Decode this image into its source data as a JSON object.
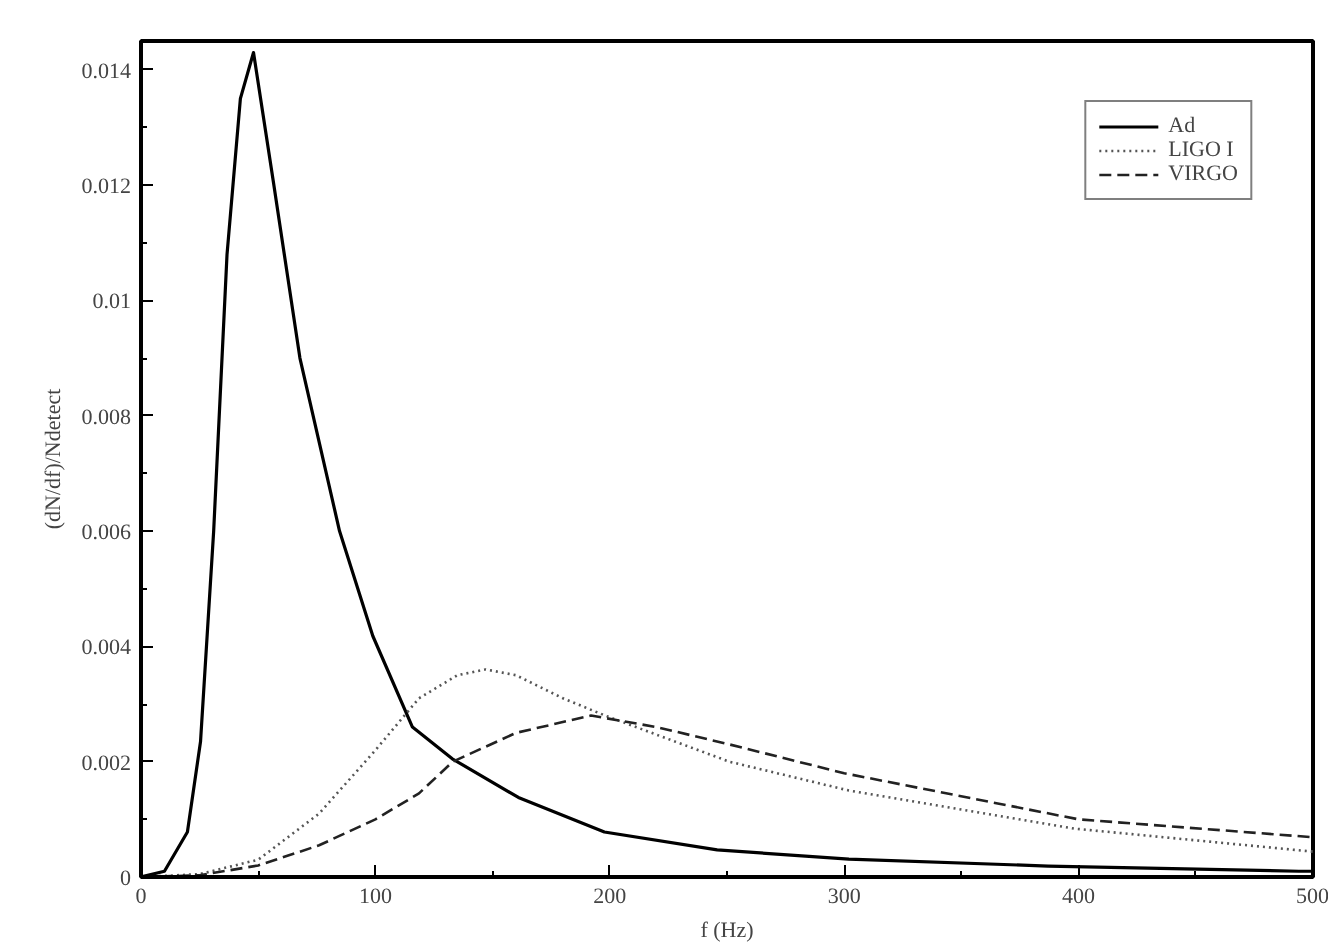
{
  "chart_data": {
    "type": "line",
    "xlabel": "f (Hz)",
    "ylabel": "(dN/df)/Ndetect",
    "xlim": [
      0,
      500
    ],
    "ylim": [
      0,
      0.0145
    ],
    "xticks": [
      0,
      100,
      200,
      300,
      400,
      500
    ],
    "yticks": [
      0,
      0.002,
      0.004,
      0.006,
      0.008,
      {
        "value": 0.01,
        "label": "0.01"
      },
      0.012,
      0.014
    ],
    "grid": false,
    "legend": "top right",
    "marker": "none",
    "series": [
      {
        "name": "Ad",
        "color": "#000000",
        "line_style": "solid",
        "x": [
          0,
          10,
          19.8,
          25.4,
          31,
          36.7,
          42.4,
          48,
          56.5,
          67.8,
          84.7,
          98.9,
          115.8,
          132.8,
          161,
          197.7,
          245.8,
          302,
          387,
          494,
          500
        ],
        "values": [
          0,
          0.0001,
          0.00078,
          0.00235,
          0.006,
          0.0108,
          0.0135,
          0.0143,
          0.01205,
          0.009,
          0.006,
          0.00418,
          0.0026,
          0.00205,
          0.00138,
          0.00078,
          0.00047,
          0.00031,
          0.00019,
          0.0001,
          0.0001
        ]
      },
      {
        "name": "LIGO I",
        "color": "#555555",
        "line_style": "dotted",
        "x": [
          0,
          25,
          50,
          76,
          100,
          118.6,
          135,
          147,
          160,
          180,
          198,
          251,
          302,
          398,
          500
        ],
        "values": [
          0,
          5e-05,
          0.0003,
          0.0011,
          0.0022,
          0.0031,
          0.0035,
          0.0036,
          0.0035,
          0.0031,
          0.0028,
          0.002,
          0.0015,
          0.00084,
          0.00044
        ]
      },
      {
        "name": "VIRGO",
        "color": "#222222",
        "line_style": "dashed",
        "x": [
          0,
          25,
          50,
          76,
          100,
          118.6,
          133,
          160,
          192,
          220,
          251,
          300,
          400,
          500
        ],
        "values": [
          0,
          3e-05,
          0.0002,
          0.00055,
          0.001,
          0.00145,
          0.002,
          0.0025,
          0.0028,
          0.0026,
          0.0023,
          0.0018,
          0.001,
          0.00069
        ]
      }
    ]
  }
}
